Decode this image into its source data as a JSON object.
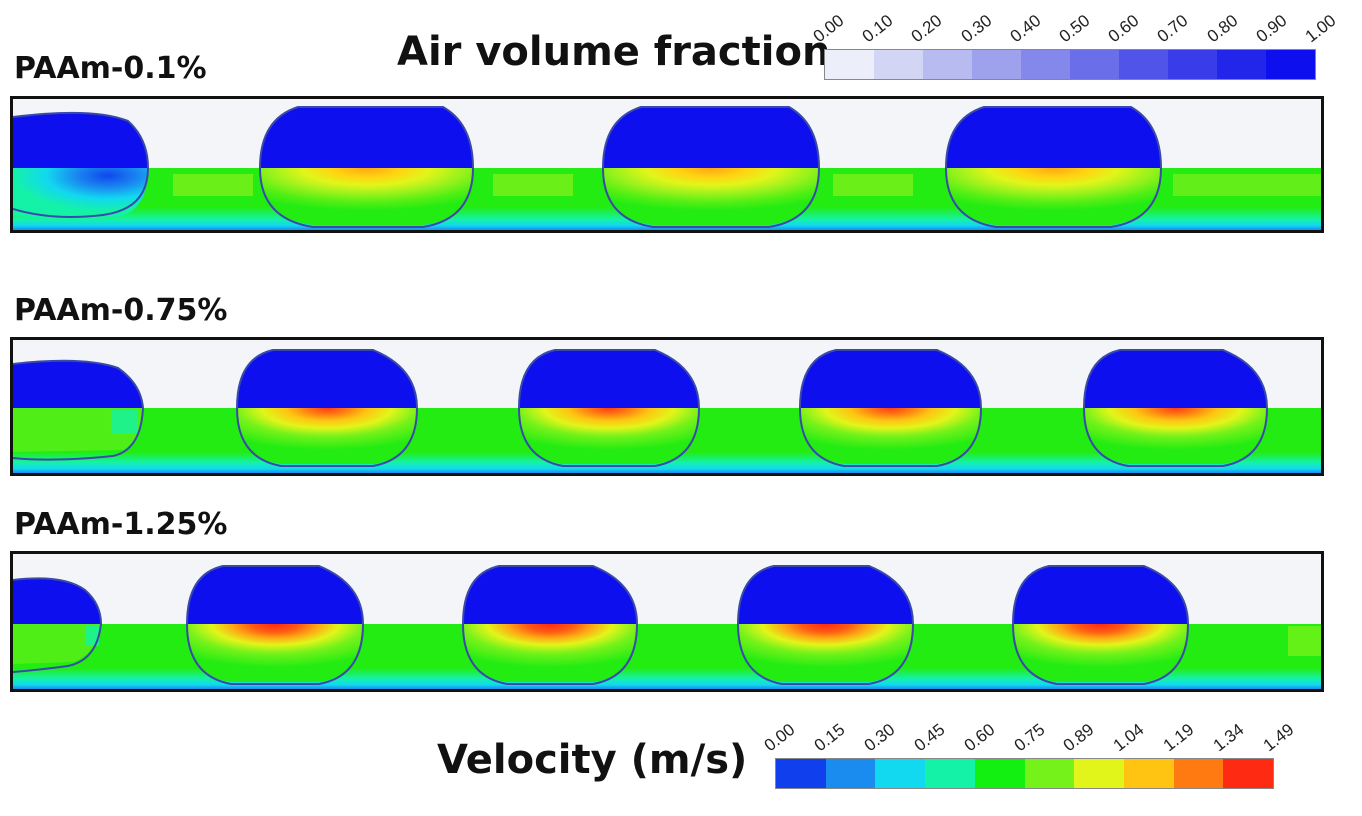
{
  "air_legend": {
    "title": "Air volume fraction",
    "ticks": [
      "0.00",
      "0.10",
      "0.20",
      "0.30",
      "0.40",
      "0.50",
      "0.60",
      "0.70",
      "0.80",
      "0.90",
      "1.00"
    ],
    "colors": [
      "#eceff9",
      "#d2d5f3",
      "#b8bbef",
      "#9ea1ec",
      "#8488ea",
      "#6a6ee8",
      "#5054e8",
      "#383ce9",
      "#2226ea",
      "#0d0fee"
    ]
  },
  "velocity_legend": {
    "title": "Velocity (m/s)",
    "ticks": [
      "0.00",
      "0.15",
      "0.30",
      "0.45",
      "0.60",
      "0.75",
      "0.89",
      "1.04",
      "1.19",
      "1.34",
      "1.49"
    ],
    "colors": [
      "#1040ee",
      "#1a8cf0",
      "#12d8f0",
      "#14f2a8",
      "#11f011",
      "#74f21a",
      "#e2f51a",
      "#ffc312",
      "#ff7b12",
      "#ff2a12"
    ]
  },
  "panels": [
    {
      "label": "PAAm-0.1%"
    },
    {
      "label": "PAAm-0.75%"
    },
    {
      "label": "PAAm-1.25%"
    }
  ]
}
